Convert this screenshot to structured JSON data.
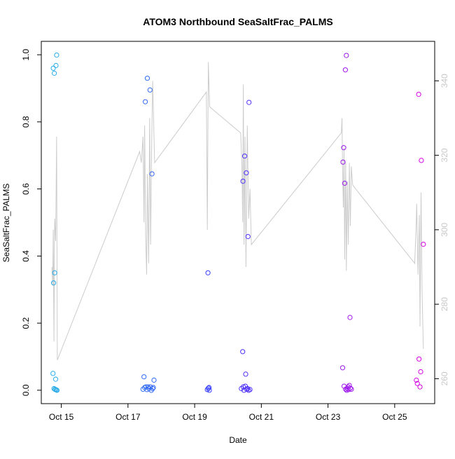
{
  "chart_data": {
    "type": "scatter",
    "title": "ATOM3 Northbound SeaSaltFrac_PALMS",
    "xlabel": "Date",
    "ylabel": "SeaSaltFrac_PALMS",
    "x_ticks": [
      "Oct 15",
      "Oct 17",
      "Oct 19",
      "Oct 21",
      "Oct 23",
      "Oct 25"
    ],
    "y_ticks": [
      "0.0",
      "0.2",
      "0.4",
      "0.6",
      "0.8",
      "1.0"
    ],
    "y2_ticks": [
      "260",
      "280",
      "300",
      "320",
      "340"
    ],
    "xlim": [
      14.4,
      26.2
    ],
    "ylim": [
      -0.04,
      1.04
    ],
    "y2lim": [
      253.3,
      350.6
    ],
    "grid": false,
    "colors": {
      "points_start": "#29b6e6",
      "points_mid": "#3838ff",
      "points_end": "#e000e0",
      "secondary_line": "#cccccc"
    },
    "series": [
      {
        "points": [
          [
            14.76,
            0.96
          ],
          [
            14.79,
            0.945
          ],
          [
            14.84,
            0.968
          ],
          [
            14.86,
            0.999
          ],
          [
            14.77,
            0.32
          ],
          [
            14.8,
            0.35
          ],
          [
            14.75,
            0.05
          ],
          [
            14.83,
            0.033
          ],
          [
            14.78,
            0.005
          ],
          [
            14.81,
            0.003
          ],
          [
            14.82,
            0.002
          ],
          [
            14.85,
            0.001
          ],
          [
            14.87,
            0.0
          ],
          [
            17.52,
            0.86
          ],
          [
            17.58,
            0.93
          ],
          [
            17.66,
            0.895
          ],
          [
            17.72,
            0.645
          ],
          [
            17.48,
            0.04
          ],
          [
            17.78,
            0.03
          ],
          [
            17.45,
            0.003
          ],
          [
            17.5,
            0.008
          ],
          [
            17.54,
            0.01
          ],
          [
            17.57,
            0.002
          ],
          [
            17.6,
            0.01
          ],
          [
            17.63,
            0.005
          ],
          [
            17.67,
            0.01
          ],
          [
            17.7,
            0.0
          ],
          [
            17.74,
            0.005
          ],
          [
            17.76,
            0.008
          ],
          [
            19.4,
            0.35
          ],
          [
            19.38,
            0.002
          ],
          [
            19.41,
            0.006
          ],
          [
            19.43,
            0.008
          ],
          [
            19.44,
            0.0
          ],
          [
            20.45,
            0.623
          ],
          [
            20.5,
            0.698
          ],
          [
            20.55,
            0.648
          ],
          [
            20.6,
            0.458
          ],
          [
            20.63,
            0.858
          ],
          [
            20.44,
            0.115
          ],
          [
            20.53,
            0.048
          ],
          [
            20.4,
            0.005
          ],
          [
            20.46,
            0.01
          ],
          [
            20.48,
            0.0
          ],
          [
            20.52,
            0.012
          ],
          [
            20.56,
            0.003
          ],
          [
            20.59,
            0.005
          ],
          [
            20.62,
            0.0
          ],
          [
            20.66,
            0.002
          ],
          [
            23.47,
            0.723
          ],
          [
            23.45,
            0.68
          ],
          [
            23.52,
            0.955
          ],
          [
            23.55,
            0.998
          ],
          [
            23.5,
            0.617
          ],
          [
            23.66,
            0.217
          ],
          [
            23.44,
            0.067
          ],
          [
            23.48,
            0.012
          ],
          [
            23.53,
            0.003
          ],
          [
            23.56,
            0.0
          ],
          [
            23.58,
            0.005
          ],
          [
            23.6,
            0.01
          ],
          [
            23.62,
            0.002
          ],
          [
            23.64,
            0.014
          ],
          [
            23.67,
            0.006
          ],
          [
            23.7,
            0.003
          ],
          [
            25.72,
            0.882
          ],
          [
            25.8,
            0.685
          ],
          [
            25.86,
            0.435
          ],
          [
            25.73,
            0.093
          ],
          [
            25.78,
            0.055
          ],
          [
            25.65,
            0.03
          ],
          [
            25.68,
            0.02
          ],
          [
            25.76,
            0.01
          ]
        ]
      },
      {
        "axis": "right",
        "points": [
          [
            14.72,
            290
          ],
          [
            14.74,
            285
          ],
          [
            14.76,
            300
          ],
          [
            14.78,
            270
          ],
          [
            14.8,
            303
          ],
          [
            14.83,
            297
          ],
          [
            14.86,
            325
          ],
          [
            14.88,
            265
          ],
          [
            17.35,
            321
          ],
          [
            17.4,
            318
          ],
          [
            17.45,
            325
          ],
          [
            17.48,
            302
          ],
          [
            17.5,
            328
          ],
          [
            17.53,
            298
          ],
          [
            17.56,
            288
          ],
          [
            17.58,
            315
          ],
          [
            17.62,
            291
          ],
          [
            17.65,
            330
          ],
          [
            17.68,
            296
          ],
          [
            17.71,
            322
          ],
          [
            17.74,
            340
          ],
          [
            17.8,
            318
          ],
          [
            19.35,
            337
          ],
          [
            19.38,
            300
          ],
          [
            19.41,
            345
          ],
          [
            19.45,
            333
          ],
          [
            20.38,
            326
          ],
          [
            20.42,
            316
          ],
          [
            20.44,
            302
          ],
          [
            20.46,
            339
          ],
          [
            20.48,
            296
          ],
          [
            20.51,
            325
          ],
          [
            20.54,
            290
          ],
          [
            20.58,
            328
          ],
          [
            20.62,
            303
          ],
          [
            20.66,
            311
          ],
          [
            20.7,
            296
          ],
          [
            23.4,
            326
          ],
          [
            23.42,
            330
          ],
          [
            23.44,
            315
          ],
          [
            23.46,
            306
          ],
          [
            23.48,
            322
          ],
          [
            23.5,
            292
          ],
          [
            23.53,
            318
          ],
          [
            23.55,
            289
          ],
          [
            23.58,
            313
          ],
          [
            23.61,
            296
          ],
          [
            23.64,
            318
          ],
          [
            23.67,
            301
          ],
          [
            23.7,
            317
          ],
          [
            23.74,
            312
          ],
          [
            25.6,
            291
          ],
          [
            25.64,
            300
          ],
          [
            25.66,
            307
          ],
          [
            25.7,
            288
          ],
          [
            25.74,
            304
          ],
          [
            25.76,
            274
          ],
          [
            25.79,
            310
          ],
          [
            25.82,
            284
          ],
          [
            25.86,
            268
          ]
        ]
      }
    ]
  }
}
